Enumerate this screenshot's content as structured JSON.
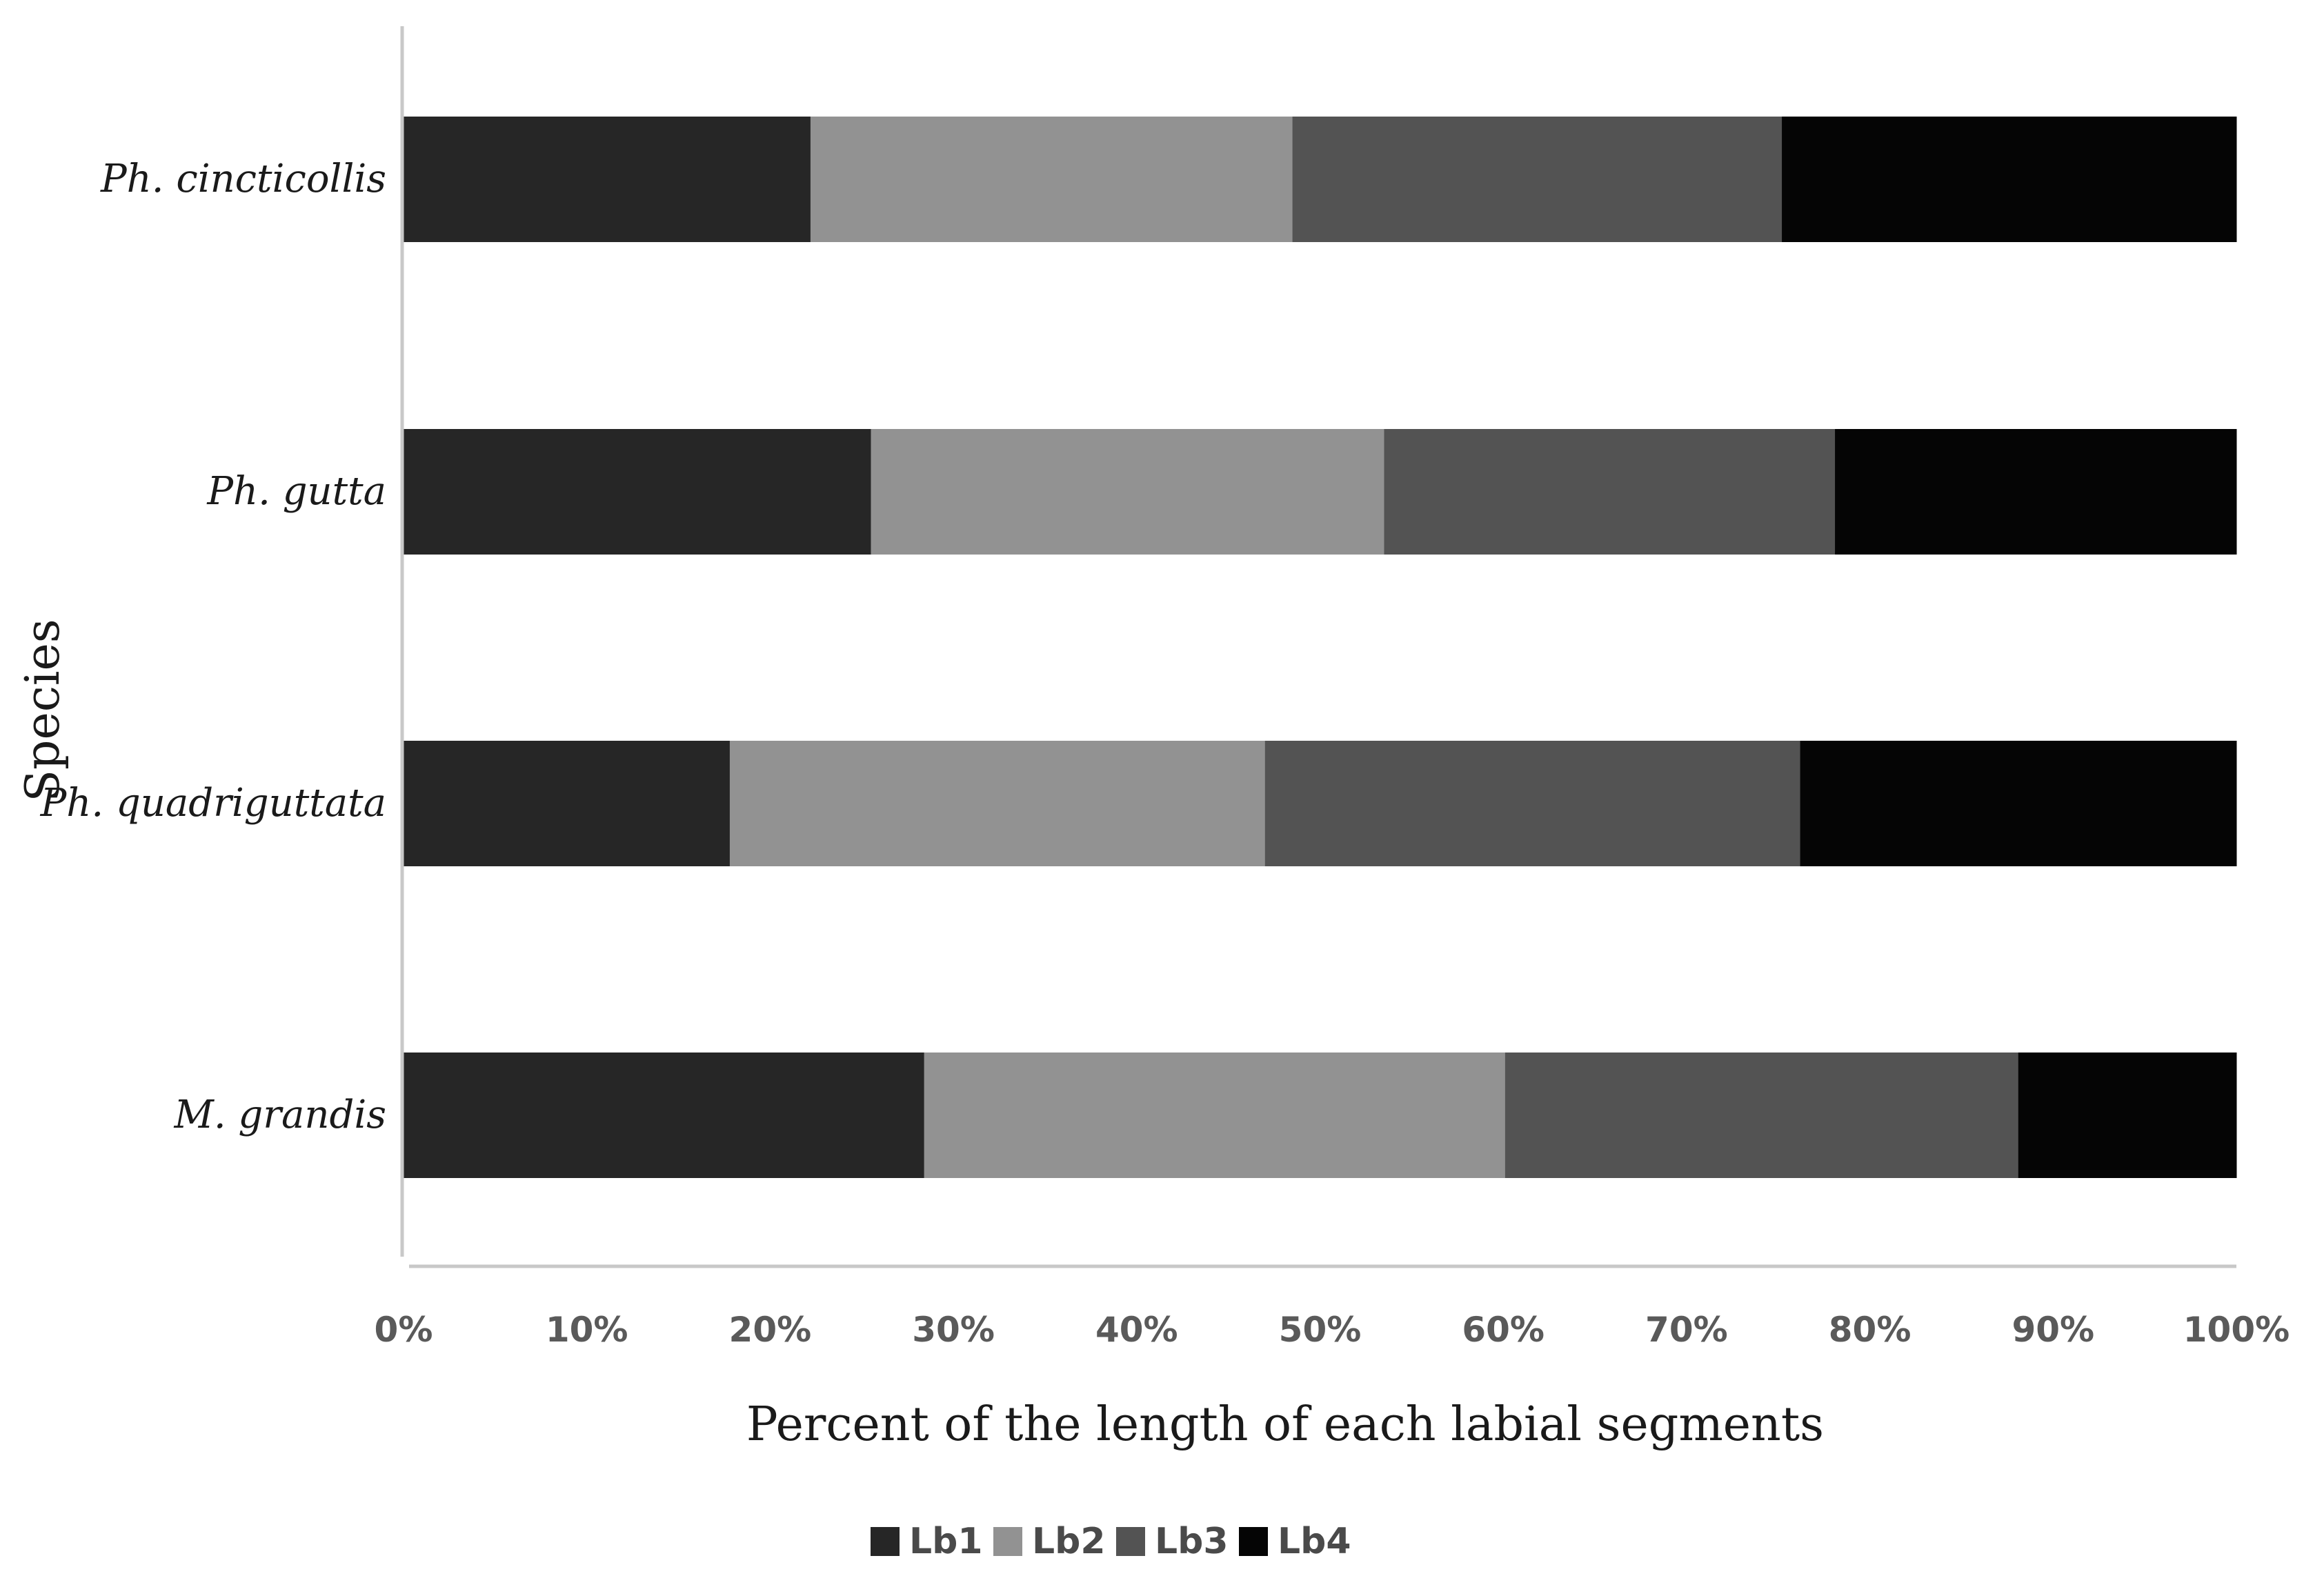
{
  "chart_data": {
    "type": "bar",
    "orientation": "horizontal",
    "stacked": "percent",
    "categories": [
      "Ph. cincticollis",
      "Ph. gutta",
      "Ph. quadriguttata",
      "M. grandis"
    ],
    "series": [
      {
        "name": "Lb1",
        "color": "#262626",
        "values": [
          22.2,
          25.5,
          17.8,
          28.4
        ]
      },
      {
        "name": "Lb2",
        "color": "#929292",
        "values": [
          26.3,
          28.0,
          29.2,
          31.7
        ]
      },
      {
        "name": "Lb3",
        "color": "#535353",
        "values": [
          26.7,
          24.6,
          29.2,
          28.0
        ]
      },
      {
        "name": "Lb4",
        "color": "#050505",
        "values": [
          24.8,
          21.9,
          23.8,
          11.9
        ]
      }
    ],
    "x_ticks": [
      "0%",
      "10%",
      "20%",
      "30%",
      "40%",
      "50%",
      "60%",
      "70%",
      "80%",
      "90%",
      "100%"
    ],
    "xlabel": "Percent of the length of each labial segments",
    "ylabel": "Species",
    "xlim": [
      0,
      100
    ],
    "grid": false,
    "legend_position": "bottom"
  }
}
